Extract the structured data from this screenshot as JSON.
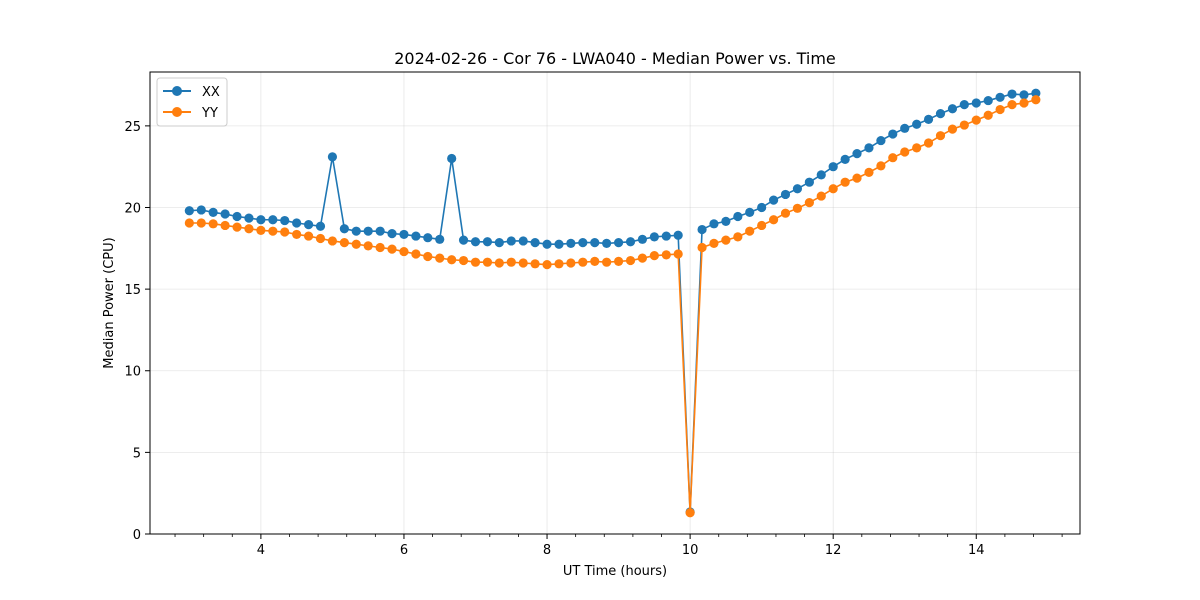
{
  "chart_data": {
    "type": "line",
    "title": "2024-02-26 - Cor 76 - LWA040 - Median Power vs. Time",
    "xlabel": "UT Time (hours)",
    "ylabel": "Median Power (CPU)",
    "xlim": [
      2.45,
      15.45
    ],
    "ylim": [
      0,
      28.3
    ],
    "xticks": [
      4,
      6,
      8,
      10,
      12,
      14
    ],
    "yticks": [
      0,
      5,
      10,
      15,
      20,
      25
    ],
    "x_minor_step": 0.4,
    "grid": true,
    "legend_position": "top-left",
    "x": [
      3.0,
      3.167,
      3.333,
      3.5,
      3.667,
      3.833,
      4.0,
      4.167,
      4.333,
      4.5,
      4.667,
      4.833,
      5.0,
      5.167,
      5.333,
      5.5,
      5.667,
      5.833,
      6.0,
      6.167,
      6.333,
      6.5,
      6.667,
      6.833,
      7.0,
      7.167,
      7.333,
      7.5,
      7.667,
      7.833,
      8.0,
      8.167,
      8.333,
      8.5,
      8.667,
      8.833,
      9.0,
      9.167,
      9.333,
      9.5,
      9.667,
      9.833,
      10.0,
      10.167,
      10.333,
      10.5,
      10.667,
      10.833,
      11.0,
      11.167,
      11.333,
      11.5,
      11.667,
      11.833,
      12.0,
      12.167,
      12.333,
      12.5,
      12.667,
      12.833,
      13.0,
      13.167,
      13.333,
      13.5,
      13.667,
      13.833,
      14.0,
      14.167,
      14.333,
      14.5,
      14.667,
      14.833
    ],
    "series": [
      {
        "name": "XX",
        "color": "#1f77b4",
        "values": [
          19.8,
          19.85,
          19.7,
          19.6,
          19.45,
          19.35,
          19.25,
          19.25,
          19.2,
          19.05,
          18.95,
          18.85,
          23.1,
          18.7,
          18.55,
          18.55,
          18.55,
          18.4,
          18.35,
          18.25,
          18.15,
          18.05,
          23.0,
          18.0,
          17.9,
          17.9,
          17.85,
          17.95,
          17.95,
          17.85,
          17.75,
          17.75,
          17.8,
          17.85,
          17.85,
          17.8,
          17.85,
          17.9,
          18.05,
          18.2,
          18.25,
          18.3,
          1.35,
          18.65,
          19.0,
          19.15,
          19.45,
          19.7,
          20.0,
          20.45,
          20.8,
          21.15,
          21.55,
          22.0,
          22.5,
          22.95,
          23.3,
          23.65,
          24.1,
          24.5,
          24.85,
          25.1,
          25.4,
          25.75,
          26.05,
          26.3,
          26.4,
          26.55,
          26.75,
          26.95,
          26.9,
          27.0
        ]
      },
      {
        "name": "YY",
        "color": "#ff7f0e",
        "values": [
          19.05,
          19.05,
          19.0,
          18.9,
          18.8,
          18.7,
          18.6,
          18.55,
          18.5,
          18.35,
          18.25,
          18.1,
          17.95,
          17.85,
          17.75,
          17.65,
          17.55,
          17.45,
          17.3,
          17.15,
          17.0,
          16.9,
          16.8,
          16.75,
          16.65,
          16.65,
          16.6,
          16.65,
          16.6,
          16.55,
          16.5,
          16.55,
          16.6,
          16.65,
          16.7,
          16.65,
          16.7,
          16.75,
          16.9,
          17.05,
          17.1,
          17.15,
          1.3,
          17.55,
          17.8,
          18.0,
          18.2,
          18.55,
          18.9,
          19.25,
          19.65,
          19.95,
          20.3,
          20.7,
          21.15,
          21.55,
          21.8,
          22.15,
          22.55,
          23.05,
          23.4,
          23.65,
          23.95,
          24.4,
          24.8,
          25.05,
          25.35,
          25.65,
          26.0,
          26.3,
          26.4,
          26.6
        ]
      }
    ]
  }
}
